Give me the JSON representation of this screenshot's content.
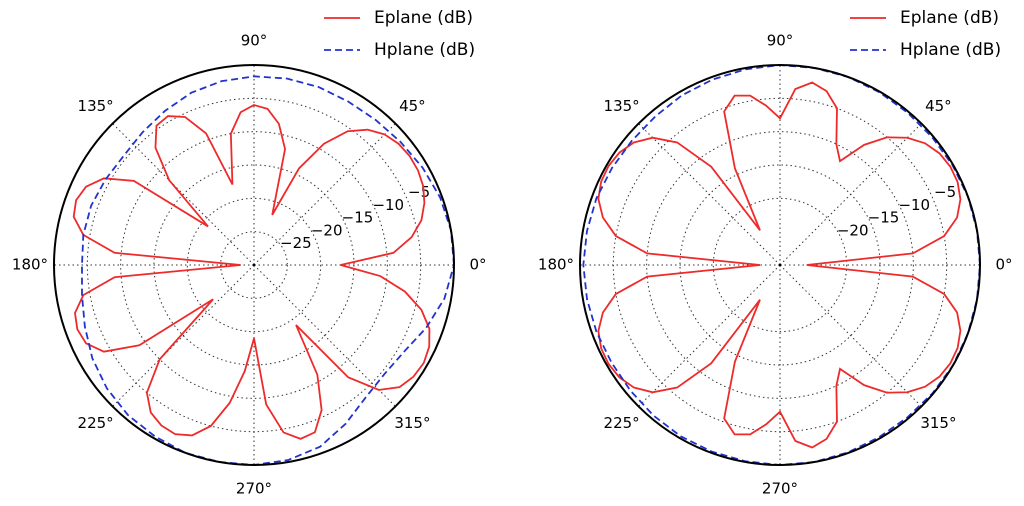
{
  "chart_data": [
    {
      "type": "polar",
      "rlim": [
        -30,
        0
      ],
      "rticks": [
        {
          "value": -25,
          "label": "−25"
        },
        {
          "value": -20,
          "label": "−20"
        },
        {
          "value": -15,
          "label": "−15"
        },
        {
          "value": -10,
          "label": "−10"
        },
        {
          "value": -5,
          "label": "−5"
        }
      ],
      "thetaticks": [
        {
          "value": 0,
          "label": "0°"
        },
        {
          "value": 45,
          "label": "45°"
        },
        {
          "value": 90,
          "label": "90°"
        },
        {
          "value": 135,
          "label": "135°"
        },
        {
          "value": 180,
          "label": "180°"
        },
        {
          "value": 225,
          "label": "225°"
        },
        {
          "value": 270,
          "label": "270°"
        },
        {
          "value": 315,
          "label": "315°"
        }
      ],
      "grid": true,
      "legend": "upper right",
      "series": [
        {
          "name": "Eplane (dB)",
          "color": "#ee2a2a",
          "dash": "solid",
          "theta": [
            0,
            5,
            10,
            15,
            20,
            25,
            30,
            35,
            40,
            45,
            50,
            55,
            60,
            65,
            70,
            75,
            80,
            85,
            90,
            95,
            100,
            105,
            110,
            115,
            120,
            125,
            130,
            135,
            140,
            145,
            150,
            155,
            160,
            165,
            170,
            175,
            180,
            185,
            190,
            195,
            200,
            205,
            210,
            215,
            220,
            225,
            230,
            235,
            240,
            245,
            250,
            255,
            260,
            265,
            270,
            275,
            280,
            285,
            290,
            295,
            300,
            305,
            310,
            315,
            320,
            325,
            330,
            335,
            340,
            345,
            350,
            355,
            360
          ],
          "values": [
            -17,
            -9,
            -6,
            -4,
            -2.8,
            -2,
            -1.6,
            -1.5,
            -1.7,
            -2.3,
            -3.5,
            -5.5,
            -9,
            -14,
            -22,
            -12,
            -8.5,
            -6.5,
            -6,
            -7,
            -10,
            -17.5,
            -9,
            -5.5,
            -4.2,
            -4.5,
            -7,
            -12,
            -21,
            -8,
            -4,
            -2.2,
            -1.6,
            -2,
            -4,
            -9,
            -28,
            -9,
            -4,
            -2.2,
            -1.8,
            -2.2,
            -4,
            -9,
            -22,
            -10,
            -5,
            -3,
            -2.2,
            -2,
            -2.8,
            -5,
            -9,
            -14,
            -19,
            -9,
            -4.5,
            -3,
            -3.3,
            -6,
            -11,
            -19,
            -8,
            -3.5,
            -1.5,
            -0.8,
            -0.6,
            -1,
            -2,
            -4,
            -7,
            -11,
            -17
          ]
        },
        {
          "name": "Hplane (dB)",
          "color": "#2233cc",
          "dash": "dashed",
          "theta": [
            0,
            10,
            20,
            30,
            40,
            50,
            60,
            70,
            80,
            90,
            100,
            110,
            120,
            130,
            140,
            150,
            160,
            170,
            180,
            190,
            200,
            210,
            220,
            230,
            240,
            250,
            260,
            270,
            280,
            290,
            300,
            310,
            320,
            330,
            340,
            350,
            360
          ],
          "values": [
            0,
            0,
            -0.3,
            -0.8,
            -1.3,
            -1.6,
            -1.7,
            -1.6,
            -1.6,
            -1.7,
            -2,
            -2.5,
            -3.3,
            -4,
            -4.5,
            -4.3,
            -4,
            -4,
            -4.2,
            -3.8,
            -3,
            -2,
            -1.2,
            -0.6,
            -0.3,
            0,
            0,
            0,
            -0.3,
            -1,
            -2.5,
            -4,
            -4.5,
            -4,
            -2.5,
            -1,
            0
          ]
        }
      ]
    },
    {
      "type": "polar",
      "rlim": [
        -30,
        0
      ],
      "rticks": [
        {
          "value": -20,
          "label": "−20"
        },
        {
          "value": -15,
          "label": "−15"
        },
        {
          "value": -10,
          "label": "−10"
        },
        {
          "value": -5,
          "label": "−5"
        }
      ],
      "thetaticks": [
        {
          "value": 0,
          "label": "0°"
        },
        {
          "value": 45,
          "label": "45°"
        },
        {
          "value": 90,
          "label": "90°"
        },
        {
          "value": 135,
          "label": "135°"
        },
        {
          "value": 180,
          "label": "180°"
        },
        {
          "value": 225,
          "label": "225°"
        },
        {
          "value": 270,
          "label": "270°"
        },
        {
          "value": 315,
          "label": "315°"
        }
      ],
      "grid": true,
      "legend": "upper right",
      "series": [
        {
          "name": "Eplane (dB)",
          "color": "#ee2a2a",
          "dash": "solid",
          "theta": [
            0,
            5,
            10,
            15,
            20,
            25,
            30,
            35,
            40,
            45,
            50,
            55,
            60,
            65,
            70,
            75,
            80,
            85,
            90,
            95,
            100,
            105,
            110,
            115,
            120,
            125,
            130,
            135,
            140,
            145,
            150,
            155,
            160,
            165,
            170,
            175,
            180,
            185,
            190,
            195,
            200,
            205,
            210,
            215,
            220,
            225,
            230,
            235,
            240,
            245,
            250,
            255,
            260,
            265,
            270,
            275,
            280,
            285,
            290,
            295,
            300,
            305,
            310,
            315,
            320,
            325,
            330,
            335,
            340,
            345,
            350,
            355,
            360
          ],
          "values": [
            -26,
            -10,
            -5,
            -2.5,
            -1.2,
            -0.6,
            -0.5,
            -0.8,
            -1.6,
            -3,
            -5,
            -8,
            -12,
            -10,
            -5,
            -3,
            -2.2,
            -3.5,
            -8,
            -6,
            -4.2,
            -3.7,
            -5.5,
            -14,
            -24,
            -12,
            -6,
            -3,
            -1.4,
            -0.6,
            -0.3,
            -0.4,
            -1,
            -2.5,
            -5,
            -10,
            -27,
            -10,
            -5,
            -2.5,
            -1,
            -0.4,
            -0.3,
            -0.6,
            -1.4,
            -3,
            -6,
            -12,
            -24,
            -14,
            -5.5,
            -3.7,
            -4.2,
            -6,
            -8,
            -3.5,
            -2.2,
            -3,
            -5,
            -10,
            -12,
            -8,
            -5,
            -3,
            -1.6,
            -0.8,
            -0.5,
            -0.6,
            -1.2,
            -2.5,
            -5,
            -10,
            -26
          ]
        },
        {
          "name": "Hplane (dB)",
          "color": "#2233cc",
          "dash": "dashed",
          "theta": [
            0,
            10,
            20,
            30,
            40,
            50,
            60,
            70,
            80,
            90,
            100,
            110,
            120,
            130,
            140,
            150,
            160,
            170,
            180,
            190,
            200,
            210,
            220,
            230,
            240,
            250,
            260,
            270,
            280,
            290,
            300,
            310,
            320,
            330,
            340,
            350,
            360
          ],
          "values": [
            0,
            0,
            0,
            -0.1,
            -0.2,
            -0.2,
            -0.1,
            0,
            0,
            0,
            -0.2,
            -0.4,
            -0.6,
            -0.9,
            -1,
            -0.9,
            -0.7,
            -0.6,
            -0.5,
            -0.6,
            -0.7,
            -0.8,
            -0.7,
            -0.5,
            -0.3,
            -0.2,
            -0.1,
            0,
            0,
            -0.1,
            -0.2,
            -0.2,
            -0.1,
            0,
            0,
            0,
            0
          ]
        }
      ]
    }
  ]
}
